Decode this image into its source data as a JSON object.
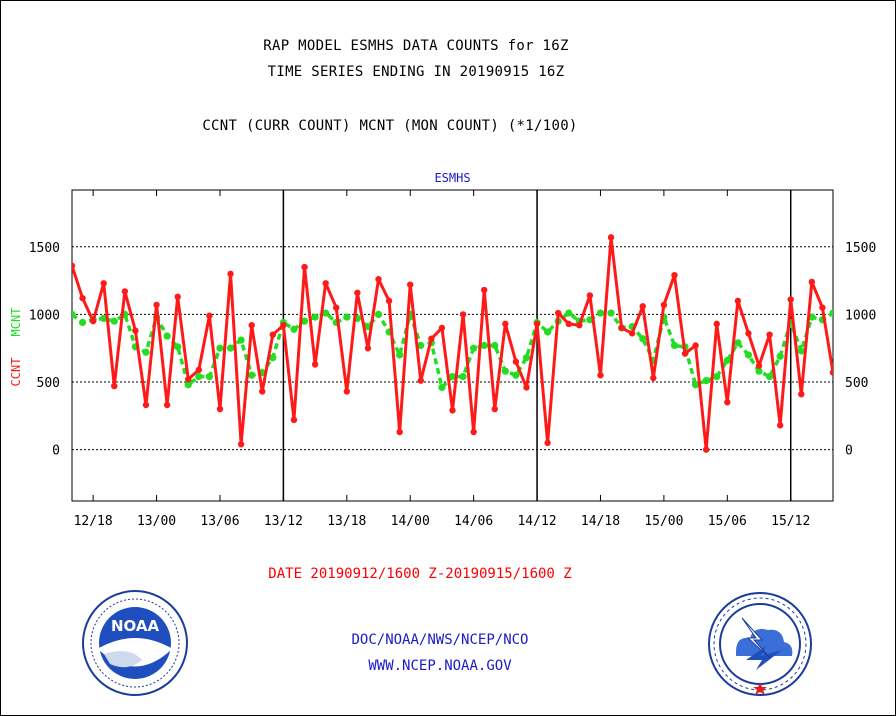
{
  "header": {
    "line1": "RAP MODEL ESMHS DATA COUNTS for 16Z",
    "line2": "TIME SERIES ENDING IN 20190915 16Z",
    "line3": "CCNT (CURR COUNT) MCNT (MON COUNT) (*1/100)"
  },
  "footer": {
    "date_range": "DATE 20190912/1600 Z-20190915/1600 Z",
    "credit1": "DOC/NOAA/NWS/NCEP/NCO",
    "credit2": "WWW.NCEP.NOAA.GOV"
  },
  "logos": {
    "left": {
      "icon": "noaa-logo-icon",
      "text": "NOAA"
    },
    "right": {
      "icon": "nws-logo-icon"
    }
  },
  "colors": {
    "ccnt": "#ff1a1a",
    "mcnt": "#22dd22",
    "title": "#1a1ac8",
    "frame": "#000000"
  },
  "chart_data": {
    "type": "line",
    "title": "ESMHS",
    "ylabel_ccnt": "CCNT",
    "ylabel_mcnt": "MCNT",
    "ylim": [
      -380,
      1920
    ],
    "yticks": [
      0,
      500,
      1000,
      1500
    ],
    "ytick_labels": [
      "0",
      "500",
      "1000",
      "1500"
    ],
    "xlim": [
      0,
      72
    ],
    "xticks": [
      2,
      8,
      14,
      20,
      26,
      32,
      38,
      44,
      50,
      56,
      62,
      68
    ],
    "xtick_labels": [
      "12/18",
      "13/00",
      "13/06",
      "13/12",
      "13/18",
      "14/00",
      "14/06",
      "14/12",
      "14/18",
      "15/00",
      "15/06",
      "15/12"
    ],
    "day_separators": [
      20,
      44,
      68
    ],
    "grid": "horizontal dotted",
    "x": [
      0,
      1,
      2,
      3,
      4,
      5,
      6,
      7,
      8,
      9,
      10,
      11,
      12,
      13,
      14,
      15,
      16,
      17,
      18,
      19,
      20,
      21,
      22,
      23,
      24,
      25,
      26,
      27,
      28,
      29,
      30,
      31,
      32,
      33,
      34,
      35,
      36,
      37,
      38,
      39,
      40,
      41,
      42,
      43,
      44,
      45,
      46,
      47,
      48,
      49,
      50,
      51,
      52,
      53,
      54,
      55,
      56,
      57,
      58,
      59,
      60,
      61,
      62,
      63,
      64,
      65,
      66,
      67,
      68,
      69,
      70,
      71,
      72
    ],
    "series": [
      {
        "name": "CCNT",
        "values": [
          1360,
          1120,
          950,
          1230,
          470,
          1170,
          880,
          330,
          1070,
          330,
          1130,
          520,
          590,
          990,
          300,
          1300,
          40,
          920,
          430,
          850,
          920,
          220,
          1350,
          630,
          1230,
          1050,
          430,
          1160,
          750,
          1260,
          1100,
          130,
          1220,
          510,
          820,
          900,
          290,
          1000,
          130,
          1180,
          300,
          930,
          650,
          460,
          930,
          50,
          1010,
          930,
          920,
          1140,
          550,
          1570,
          900,
          860,
          1060,
          530,
          1070,
          1290,
          710,
          770,
          0,
          930,
          350,
          1100,
          860,
          620,
          850,
          180,
          1110,
          410,
          1240,
          1050,
          570
        ]
      },
      {
        "name": "MCNT",
        "values": [
          1000,
          940,
          960,
          970,
          950,
          1000,
          760,
          720,
          980,
          840,
          760,
          480,
          540,
          540,
          750,
          750,
          810,
          550,
          570,
          680,
          940,
          890,
          950,
          980,
          1010,
          940,
          980,
          970,
          910,
          1000,
          870,
          700,
          1000,
          770,
          790,
          460,
          540,
          540,
          750,
          770,
          770,
          580,
          550,
          680,
          940,
          870,
          950,
          1010,
          950,
          960,
          1010,
          1010,
          900,
          910,
          820,
          660,
          980,
          770,
          760,
          480,
          510,
          540,
          660,
          790,
          700,
          580,
          540,
          690,
          940,
          730,
          980,
          960,
          1010
        ]
      }
    ]
  }
}
